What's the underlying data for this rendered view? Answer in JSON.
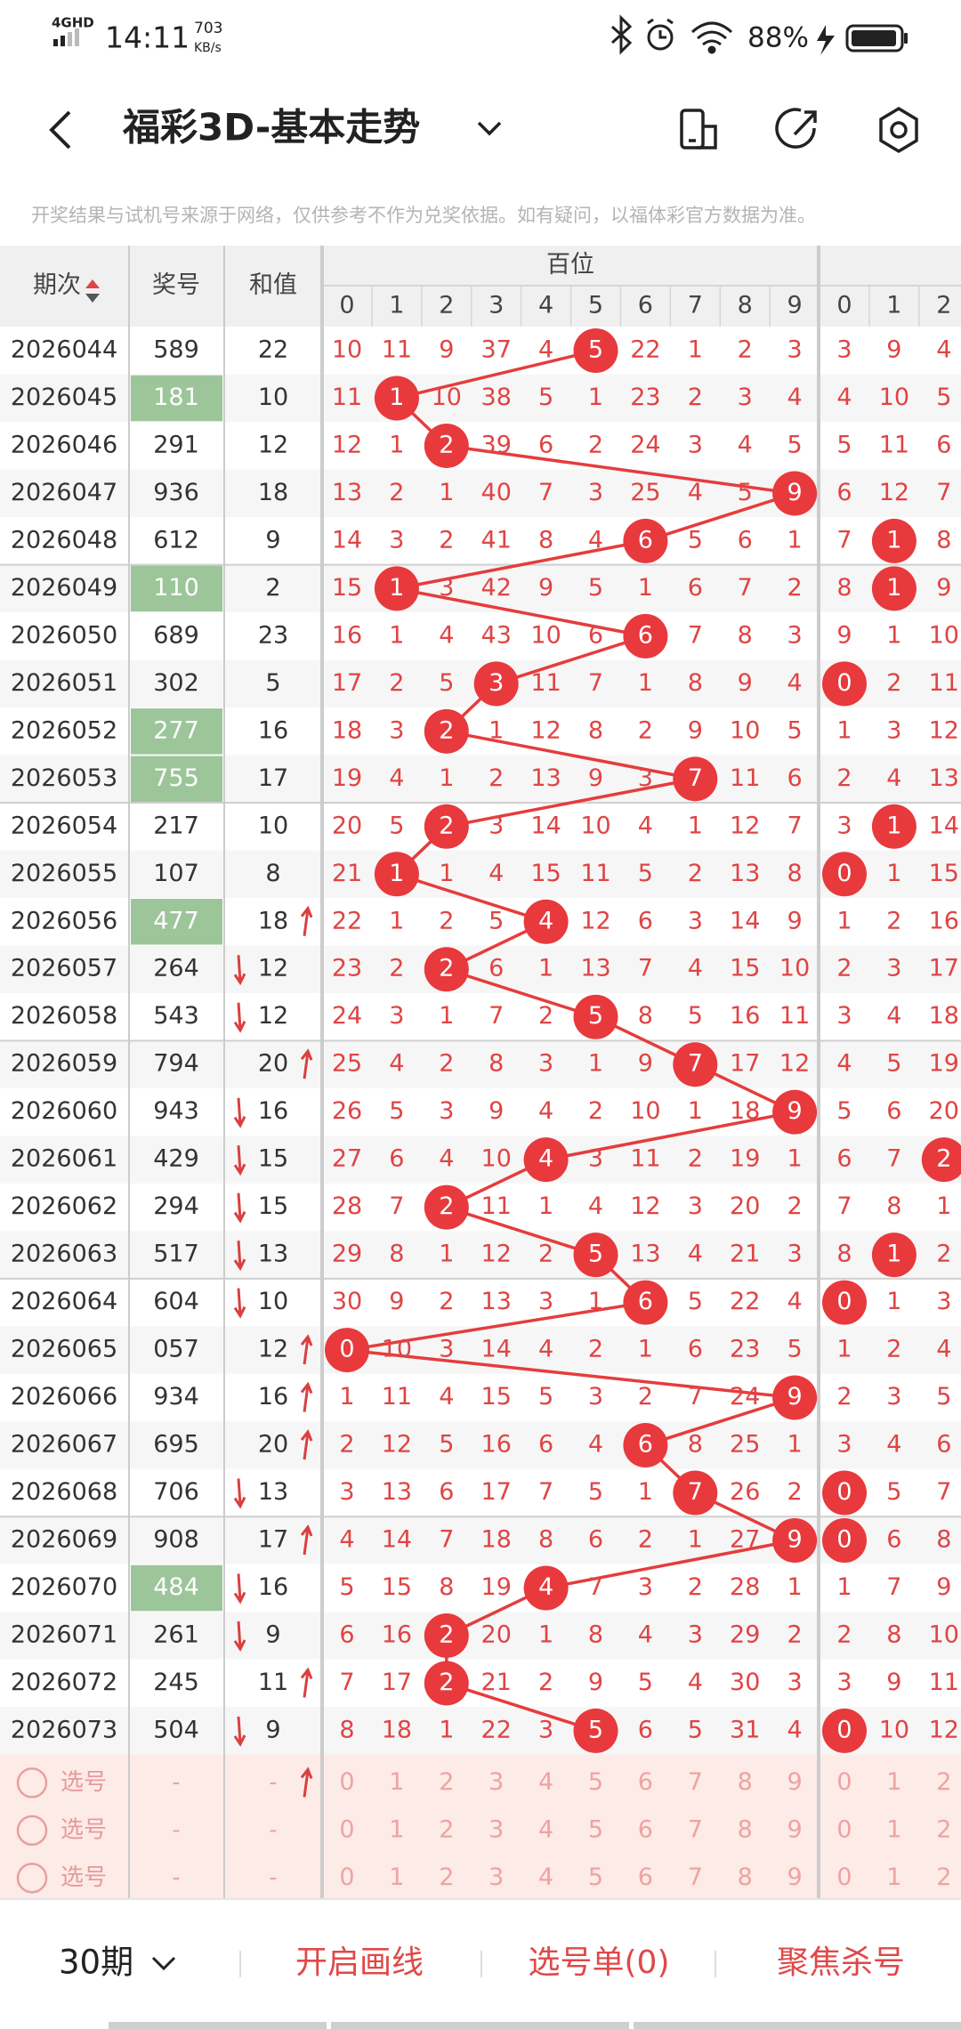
{
  "status_bar": {
    "network": "4GHD",
    "time": "14:11",
    "speed": "703",
    "speed_unit": "KB/s",
    "battery": "88%"
  },
  "header": {
    "title": "福彩3D-基本走势"
  },
  "notice": "开奖结果与试机号来源于网络，仅供参考不作为兑奖依据。如有疑问，以福体彩官方数据为准。",
  "table": {
    "columns": [
      "期次",
      "奖号",
      "和值"
    ],
    "group": "百位",
    "digits": [
      0,
      1,
      2,
      3,
      4,
      5,
      6,
      7,
      8,
      9,
      0,
      1,
      2
    ],
    "rows": [
      {
        "issue": "2026044",
        "number": "589",
        "sum": 22,
        "trend": null,
        "highlight": false,
        "cells": [
          10,
          11,
          9,
          37,
          4,
          5,
          22,
          1,
          2,
          3,
          3,
          9,
          4
        ],
        "hits": [
          5
        ]
      },
      {
        "issue": "2026045",
        "number": "181",
        "sum": 10,
        "trend": null,
        "highlight": true,
        "cells": [
          11,
          1,
          10,
          38,
          5,
          1,
          23,
          2,
          3,
          4,
          4,
          10,
          5
        ],
        "hits": [
          1
        ]
      },
      {
        "issue": "2026046",
        "number": "291",
        "sum": 12,
        "trend": null,
        "highlight": false,
        "cells": [
          12,
          1,
          2,
          39,
          6,
          2,
          24,
          3,
          4,
          5,
          5,
          11,
          6
        ],
        "hits": [
          2
        ]
      },
      {
        "issue": "2026047",
        "number": "936",
        "sum": 18,
        "trend": null,
        "highlight": false,
        "cells": [
          13,
          2,
          1,
          40,
          7,
          3,
          25,
          4,
          5,
          9,
          6,
          12,
          7
        ],
        "hits": [
          9
        ]
      },
      {
        "issue": "2026048",
        "number": "612",
        "sum": 9,
        "trend": null,
        "highlight": false,
        "cells": [
          14,
          3,
          2,
          41,
          8,
          4,
          6,
          5,
          6,
          1,
          7,
          1,
          8
        ],
        "hits": [
          6,
          11
        ]
      },
      {
        "issue": "2026049",
        "number": "110",
        "sum": 2,
        "trend": null,
        "highlight": true,
        "cells": [
          15,
          1,
          3,
          42,
          9,
          5,
          1,
          6,
          7,
          2,
          8,
          1,
          9
        ],
        "hits": [
          1,
          11
        ]
      },
      {
        "issue": "2026050",
        "number": "689",
        "sum": 23,
        "trend": null,
        "highlight": false,
        "cells": [
          16,
          1,
          4,
          43,
          10,
          6,
          6,
          7,
          8,
          3,
          9,
          1,
          10
        ],
        "hits": [
          6
        ]
      },
      {
        "issue": "2026051",
        "number": "302",
        "sum": 5,
        "trend": null,
        "highlight": false,
        "cells": [
          17,
          2,
          5,
          3,
          11,
          7,
          1,
          8,
          9,
          4,
          0,
          2,
          11
        ],
        "hits": [
          3,
          10
        ]
      },
      {
        "issue": "2026052",
        "number": "277",
        "sum": 16,
        "trend": null,
        "highlight": true,
        "cells": [
          18,
          3,
          2,
          1,
          12,
          8,
          2,
          9,
          10,
          5,
          1,
          3,
          12
        ],
        "hits": [
          2
        ]
      },
      {
        "issue": "2026053",
        "number": "755",
        "sum": 17,
        "trend": null,
        "highlight": true,
        "cells": [
          19,
          4,
          1,
          2,
          13,
          9,
          3,
          7,
          11,
          6,
          2,
          4,
          13
        ],
        "hits": [
          7
        ]
      },
      {
        "issue": "2026054",
        "number": "217",
        "sum": 10,
        "trend": null,
        "highlight": false,
        "cells": [
          20,
          5,
          2,
          3,
          14,
          10,
          4,
          1,
          12,
          7,
          3,
          1,
          14
        ],
        "hits": [
          2,
          11
        ]
      },
      {
        "issue": "2026055",
        "number": "107",
        "sum": 8,
        "trend": null,
        "highlight": false,
        "cells": [
          21,
          1,
          1,
          4,
          15,
          11,
          5,
          2,
          13,
          8,
          0,
          1,
          15
        ],
        "hits": [
          1,
          10
        ]
      },
      {
        "issue": "2026056",
        "number": "477",
        "sum": 18,
        "trend": "up",
        "highlight": true,
        "cells": [
          22,
          1,
          2,
          5,
          4,
          12,
          6,
          3,
          14,
          9,
          1,
          2,
          16
        ],
        "hits": [
          4
        ]
      },
      {
        "issue": "2026057",
        "number": "264",
        "sum": 12,
        "trend": "down",
        "highlight": false,
        "cells": [
          23,
          2,
          2,
          6,
          1,
          13,
          7,
          4,
          15,
          10,
          2,
          3,
          17
        ],
        "hits": [
          2
        ]
      },
      {
        "issue": "2026058",
        "number": "543",
        "sum": 12,
        "trend": "down",
        "highlight": false,
        "cells": [
          24,
          3,
          1,
          7,
          2,
          5,
          8,
          5,
          16,
          11,
          3,
          4,
          18
        ],
        "hits": [
          5
        ]
      },
      {
        "issue": "2026059",
        "number": "794",
        "sum": 20,
        "trend": "up",
        "highlight": false,
        "cells": [
          25,
          4,
          2,
          8,
          3,
          1,
          9,
          7,
          17,
          12,
          4,
          5,
          19
        ],
        "hits": [
          7
        ]
      },
      {
        "issue": "2026060",
        "number": "943",
        "sum": 16,
        "trend": "down",
        "highlight": false,
        "cells": [
          26,
          5,
          3,
          9,
          4,
          2,
          10,
          1,
          18,
          9,
          5,
          6,
          20
        ],
        "hits": [
          9
        ]
      },
      {
        "issue": "2026061",
        "number": "429",
        "sum": 15,
        "trend": "down",
        "highlight": false,
        "cells": [
          27,
          6,
          4,
          10,
          4,
          3,
          11,
          2,
          19,
          1,
          6,
          7,
          2
        ],
        "hits": [
          4,
          12
        ]
      },
      {
        "issue": "2026062",
        "number": "294",
        "sum": 15,
        "trend": "down",
        "highlight": false,
        "cells": [
          28,
          7,
          2,
          11,
          1,
          4,
          12,
          3,
          20,
          2,
          7,
          8,
          1
        ],
        "hits": [
          2
        ]
      },
      {
        "issue": "2026063",
        "number": "517",
        "sum": 13,
        "trend": "down",
        "highlight": false,
        "cells": [
          29,
          8,
          1,
          12,
          2,
          5,
          13,
          4,
          21,
          3,
          8,
          1,
          2
        ],
        "hits": [
          5,
          11
        ]
      },
      {
        "issue": "2026064",
        "number": "604",
        "sum": 10,
        "trend": "down",
        "highlight": false,
        "cells": [
          30,
          9,
          2,
          13,
          3,
          1,
          6,
          5,
          22,
          4,
          0,
          1,
          3
        ],
        "hits": [
          6,
          10
        ]
      },
      {
        "issue": "2026065",
        "number": "057",
        "sum": 12,
        "trend": "up",
        "highlight": false,
        "cells": [
          0,
          10,
          3,
          14,
          4,
          2,
          1,
          6,
          23,
          5,
          1,
          2,
          4
        ],
        "hits": [
          0
        ]
      },
      {
        "issue": "2026066",
        "number": "934",
        "sum": 16,
        "trend": "up",
        "highlight": false,
        "cells": [
          1,
          11,
          4,
          15,
          5,
          3,
          2,
          7,
          24,
          9,
          2,
          3,
          5
        ],
        "hits": [
          9
        ]
      },
      {
        "issue": "2026067",
        "number": "695",
        "sum": 20,
        "trend": "up",
        "highlight": false,
        "cells": [
          2,
          12,
          5,
          16,
          6,
          4,
          6,
          8,
          25,
          1,
          3,
          4,
          6
        ],
        "hits": [
          6
        ]
      },
      {
        "issue": "2026068",
        "number": "706",
        "sum": 13,
        "trend": "down",
        "highlight": false,
        "cells": [
          3,
          13,
          6,
          17,
          7,
          5,
          1,
          7,
          26,
          2,
          0,
          5,
          7
        ],
        "hits": [
          7,
          10
        ]
      },
      {
        "issue": "2026069",
        "number": "908",
        "sum": 17,
        "trend": "up",
        "highlight": false,
        "cells": [
          4,
          14,
          7,
          18,
          8,
          6,
          2,
          1,
          27,
          9,
          0,
          6,
          8
        ],
        "hits": [
          9,
          10
        ]
      },
      {
        "issue": "2026070",
        "number": "484",
        "sum": 16,
        "trend": "down",
        "highlight": true,
        "cells": [
          5,
          15,
          8,
          19,
          4,
          7,
          3,
          2,
          28,
          1,
          1,
          7,
          9
        ],
        "hits": [
          4
        ]
      },
      {
        "issue": "2026071",
        "number": "261",
        "sum": 9,
        "trend": "down",
        "highlight": false,
        "cells": [
          6,
          16,
          2,
          20,
          1,
          8,
          4,
          3,
          29,
          2,
          2,
          8,
          10
        ],
        "hits": [
          2
        ]
      },
      {
        "issue": "2026072",
        "number": "245",
        "sum": 11,
        "trend": "up",
        "highlight": false,
        "cells": [
          7,
          17,
          2,
          21,
          2,
          9,
          5,
          4,
          30,
          3,
          3,
          9,
          11
        ],
        "hits": [
          2
        ]
      },
      {
        "issue": "2026073",
        "number": "504",
        "sum": 9,
        "trend": "down",
        "highlight": false,
        "cells": [
          8,
          18,
          1,
          22,
          3,
          5,
          6,
          5,
          31,
          4,
          0,
          10,
          12
        ],
        "hits": [
          5,
          10
        ]
      }
    ],
    "select_rows": [
      {
        "label": "选号",
        "number": "-",
        "sum": "-",
        "trend": "up",
        "cells": [
          0,
          1,
          2,
          3,
          4,
          5,
          6,
          7,
          8,
          9,
          0,
          1,
          2
        ]
      },
      {
        "label": "选号",
        "number": "-",
        "sum": "-",
        "trend": null,
        "cells": [
          0,
          1,
          2,
          3,
          4,
          5,
          6,
          7,
          8,
          9,
          0,
          1,
          2
        ]
      },
      {
        "label": "选号",
        "number": "-",
        "sum": "-",
        "trend": null,
        "cells": [
          0,
          1,
          2,
          3,
          4,
          5,
          6,
          7,
          8,
          9,
          0,
          1,
          2
        ]
      }
    ]
  },
  "footer": {
    "period": "30期",
    "draw_lines": "开启画线",
    "selection_list": "选号单(0)",
    "focus_kill": "聚焦杀号"
  }
}
